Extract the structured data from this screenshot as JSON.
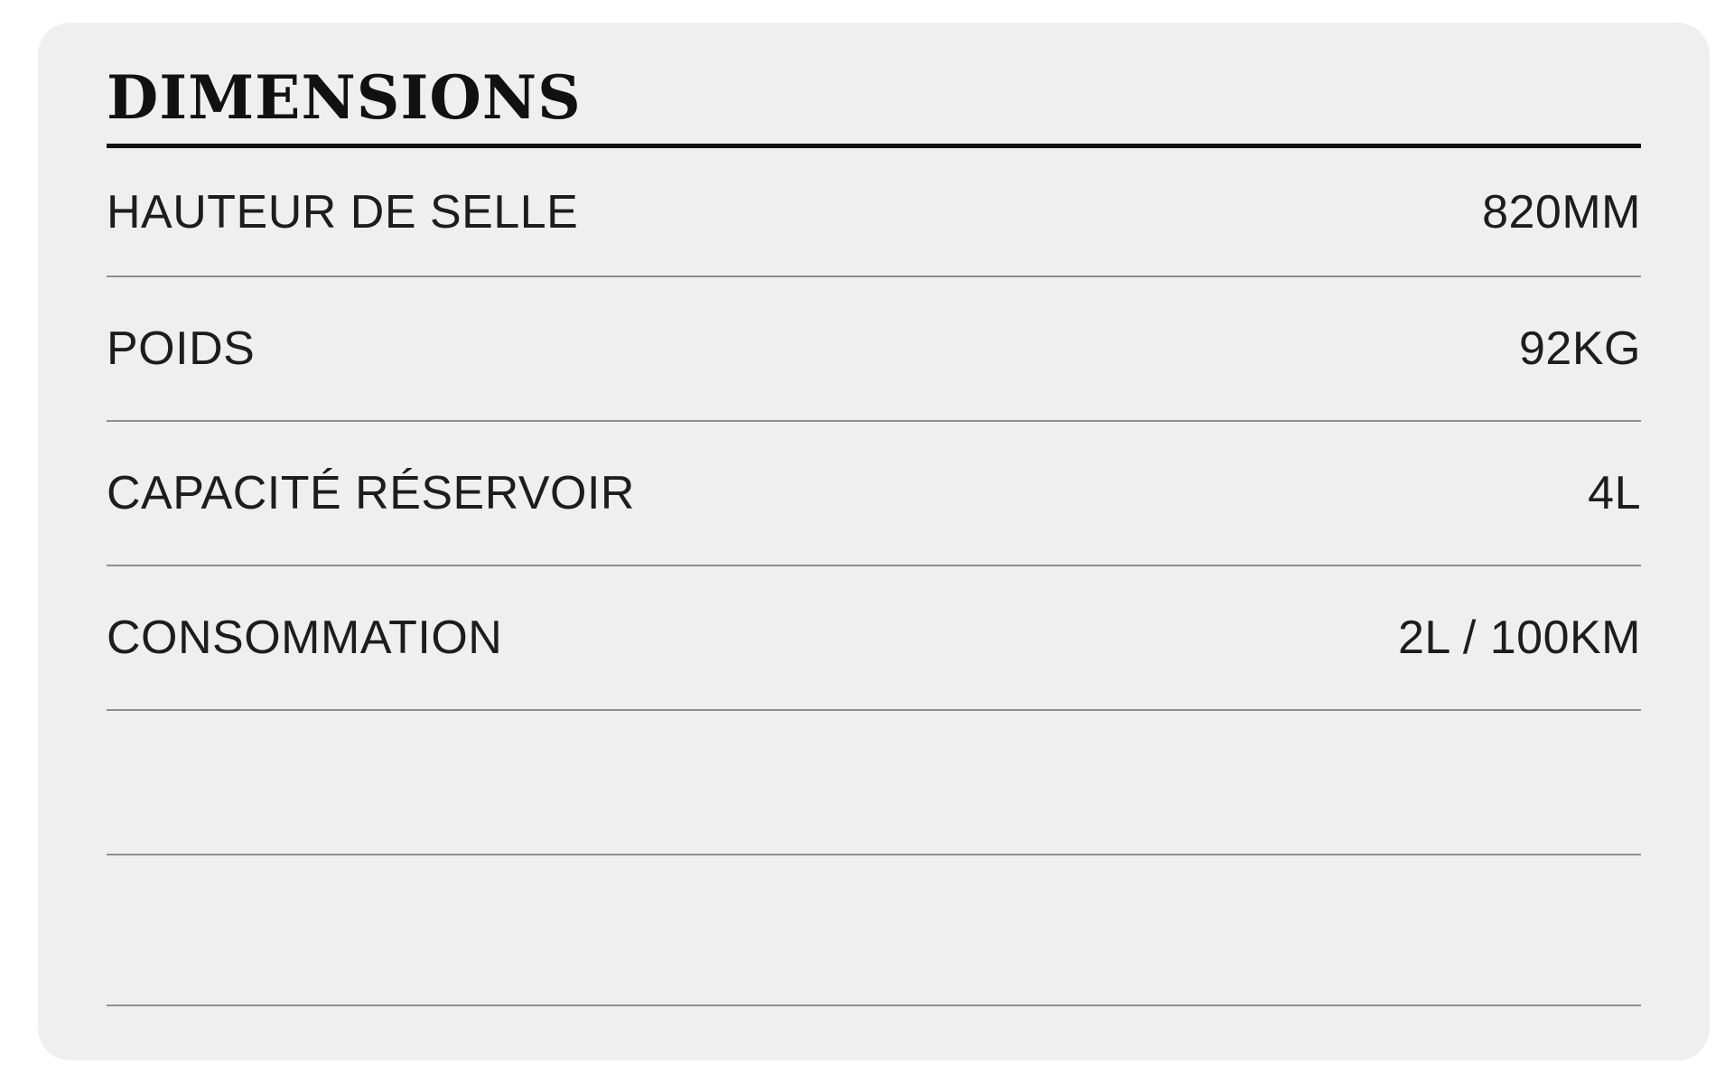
{
  "page": {
    "background": "#ffffff"
  },
  "card": {
    "title": "DIMENSIONS",
    "colors": {
      "card_bg": "#efefef",
      "title": "#111111",
      "title_rule": "#111111",
      "row_text": "#1d1d1d",
      "divider": "#8f8f8f"
    },
    "rows": [
      {
        "label": "HAUTEUR DE SELLE",
        "value": "820MM"
      },
      {
        "label": "POIDS",
        "value": "92KG"
      },
      {
        "label": "CAPACITÉ RÉSERVOIR",
        "value": "4L"
      },
      {
        "label": "CONSOMMATION",
        "value": "2L / 100KM"
      },
      {
        "label": "",
        "value": ""
      },
      {
        "label": "",
        "value": ""
      }
    ]
  }
}
